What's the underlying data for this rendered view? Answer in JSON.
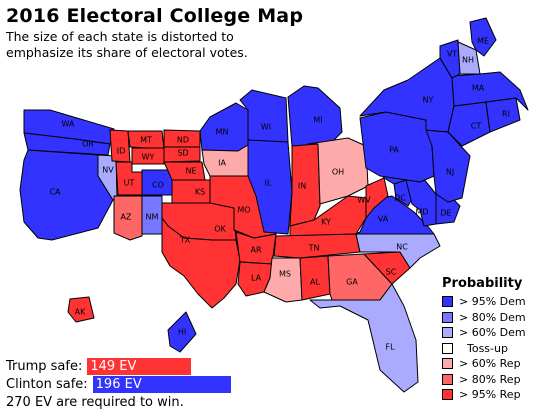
{
  "header": {
    "title": "2016 Electoral College Map",
    "subtitle_line1": "The size of each state is distorted to",
    "subtitle_line2": "emphasize its share of electoral votes."
  },
  "colors": {
    "dem_95": "#3333ff",
    "dem_80": "#7777ff",
    "dem_60": "#aaaaff",
    "tossup": "#ffffff",
    "rep_60": "#ffaaaa",
    "rep_80": "#ff6666",
    "rep_95": "#ff3333"
  },
  "states": [
    {
      "abbr": "WA",
      "category": "dem_95"
    },
    {
      "abbr": "OR",
      "category": "dem_95"
    },
    {
      "abbr": "CA",
      "category": "dem_95"
    },
    {
      "abbr": "NV",
      "category": "dem_60"
    },
    {
      "abbr": "ID",
      "category": "rep_95"
    },
    {
      "abbr": "MT",
      "category": "rep_95"
    },
    {
      "abbr": "WY",
      "category": "rep_95"
    },
    {
      "abbr": "UT",
      "category": "rep_95"
    },
    {
      "abbr": "AZ",
      "category": "rep_80"
    },
    {
      "abbr": "CO",
      "category": "dem_95"
    },
    {
      "abbr": "NM",
      "category": "dem_80"
    },
    {
      "abbr": "ND",
      "category": "rep_95"
    },
    {
      "abbr": "SD",
      "category": "rep_95"
    },
    {
      "abbr": "NE",
      "category": "rep_95"
    },
    {
      "abbr": "KS",
      "category": "rep_95"
    },
    {
      "abbr": "OK",
      "category": "rep_95"
    },
    {
      "abbr": "TX",
      "category": "rep_95"
    },
    {
      "abbr": "MN",
      "category": "dem_95"
    },
    {
      "abbr": "IA",
      "category": "rep_60"
    },
    {
      "abbr": "MO",
      "category": "rep_95"
    },
    {
      "abbr": "AR",
      "category": "rep_95"
    },
    {
      "abbr": "LA",
      "category": "rep_95"
    },
    {
      "abbr": "WI",
      "category": "dem_95"
    },
    {
      "abbr": "IL",
      "category": "dem_95"
    },
    {
      "abbr": "MI",
      "category": "dem_95"
    },
    {
      "abbr": "IN",
      "category": "rep_95"
    },
    {
      "abbr": "OH",
      "category": "rep_60"
    },
    {
      "abbr": "KY",
      "category": "rep_95"
    },
    {
      "abbr": "TN",
      "category": "rep_95"
    },
    {
      "abbr": "MS",
      "category": "rep_60"
    },
    {
      "abbr": "AL",
      "category": "rep_95"
    },
    {
      "abbr": "GA",
      "category": "rep_80"
    },
    {
      "abbr": "FL",
      "category": "dem_60"
    },
    {
      "abbr": "SC",
      "category": "rep_95"
    },
    {
      "abbr": "NC",
      "category": "dem_60"
    },
    {
      "abbr": "VA",
      "category": "dem_95"
    },
    {
      "abbr": "WV",
      "category": "rep_95"
    },
    {
      "abbr": "DC",
      "category": "dem_95"
    },
    {
      "abbr": "MD",
      "category": "dem_95"
    },
    {
      "abbr": "DE",
      "category": "dem_95"
    },
    {
      "abbr": "PA",
      "category": "dem_95"
    },
    {
      "abbr": "NJ",
      "category": "dem_95"
    },
    {
      "abbr": "NY",
      "category": "dem_95"
    },
    {
      "abbr": "CT",
      "category": "dem_95"
    },
    {
      "abbr": "RI",
      "category": "dem_95"
    },
    {
      "abbr": "MA",
      "category": "dem_95"
    },
    {
      "abbr": "VT",
      "category": "dem_95"
    },
    {
      "abbr": "NH",
      "category": "dem_60"
    },
    {
      "abbr": "ME",
      "category": "dem_95"
    },
    {
      "abbr": "AK",
      "category": "rep_95"
    },
    {
      "abbr": "HI",
      "category": "dem_95"
    }
  ],
  "legend": {
    "title": "Probability",
    "items": [
      {
        "label": "> 95% Dem",
        "category": "dem_95"
      },
      {
        "label": "> 80% Dem",
        "category": "dem_80"
      },
      {
        "label": "> 60% Dem",
        "category": "dem_60"
      },
      {
        "label": "Toss-up",
        "category": "tossup"
      },
      {
        "label": "> 60% Rep",
        "category": "rep_60"
      },
      {
        "label": "> 80% Rep",
        "category": "rep_80"
      },
      {
        "label": "> 95% Rep",
        "category": "rep_95"
      }
    ]
  },
  "footer": {
    "trump_label": "Trump safe:",
    "trump_ev": "149 EV",
    "trump_ev_value": 149,
    "clinton_label": "Clinton safe:",
    "clinton_ev": "196 EV",
    "clinton_ev_value": 196,
    "note": "270 EV are required to win."
  }
}
